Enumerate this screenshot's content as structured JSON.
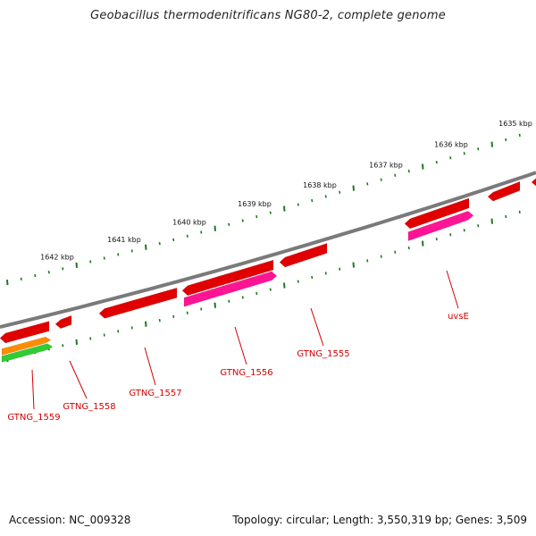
{
  "title": "Geobacillus thermodenitrificans NG80-2, complete genome",
  "footer": {
    "accession": "Accession: NC_009328",
    "topology": "Topology: circular; Length: 3,550,319 bp; Genes: 3,509"
  },
  "colors": {
    "backbone": "#7a7a7a",
    "ticks": "#1e7a1e",
    "gene_red": "#e00000",
    "gene_pink": "#ff1493",
    "gene_orange": "#ff8c00",
    "gene_green": "#33cc33",
    "label": "#d40000"
  },
  "ruler": {
    "labels": [
      "1635 kbp",
      "1636 kbp",
      "1637 kbp",
      "1638 kbp",
      "1639 kbp",
      "1640 kbp",
      "1641 kbp",
      "1642 kbp"
    ]
  },
  "genes": [
    {
      "label": "uvsE"
    },
    {
      "label": "GTNG_1555"
    },
    {
      "label": "GTNG_1556"
    },
    {
      "label": "GTNG_1557"
    },
    {
      "label": "GTNG_1558"
    },
    {
      "label": "GTNG_1559"
    }
  ]
}
